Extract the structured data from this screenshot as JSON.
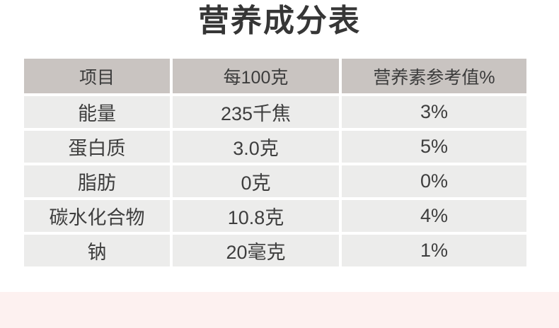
{
  "title": "营养成分表",
  "table": {
    "columns": [
      "项目",
      "每100克",
      "营养素参考值%"
    ],
    "rows": [
      {
        "item": "能量",
        "per_100g": "235千焦",
        "nrv_percent": "3%"
      },
      {
        "item": "蛋白质",
        "per_100g": "3.0克",
        "nrv_percent": "5%"
      },
      {
        "item": "脂肪",
        "per_100g": "0克",
        "nrv_percent": "0%"
      },
      {
        "item": "碳水化合物",
        "per_100g": "10.8克",
        "nrv_percent": "4%"
      },
      {
        "item": "钠",
        "per_100g": "20毫克",
        "nrv_percent": "1%"
      }
    ]
  },
  "colors": {
    "page_bg": "#ffffff",
    "header_bg": "#c9c4c1",
    "row_bg": "#ececeb",
    "text": "#3e3e3e",
    "footer_band": "#fdf1f0"
  }
}
